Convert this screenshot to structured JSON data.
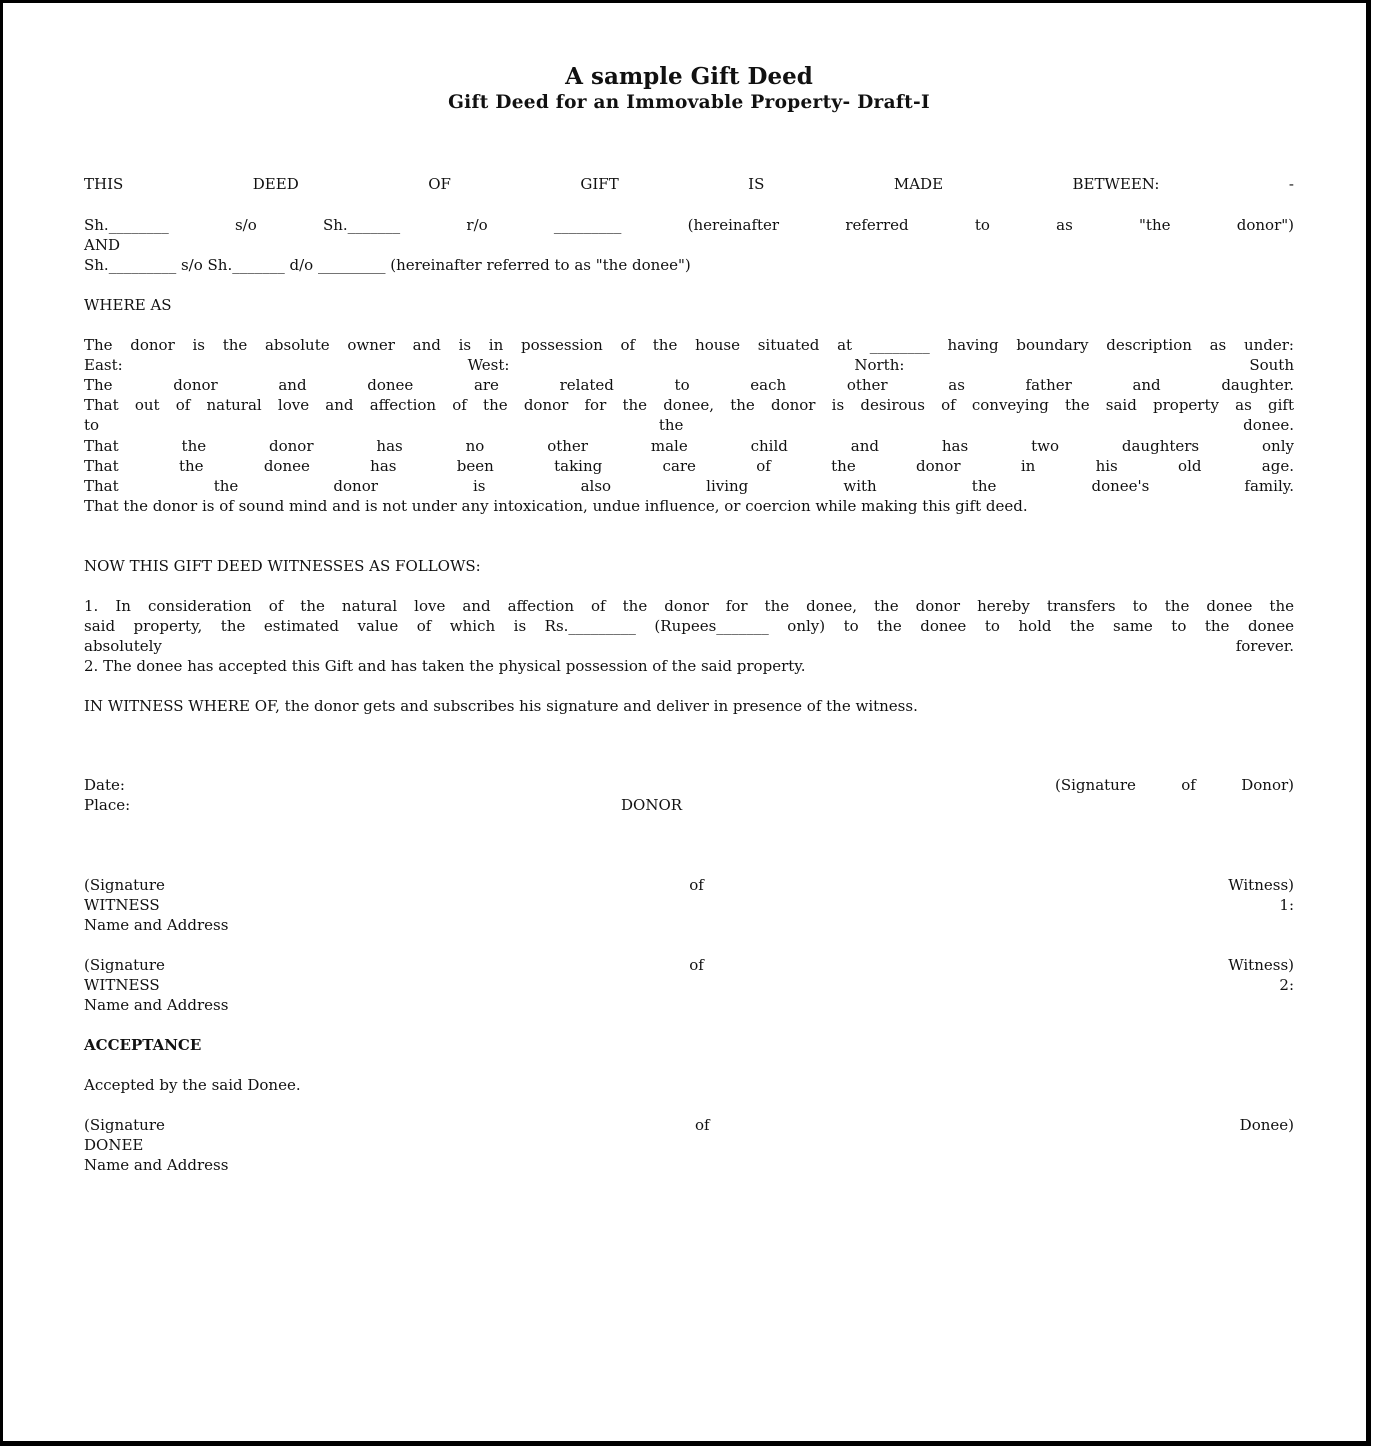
{
  "title": "A sample Gift Deed",
  "subtitle": "Gift Deed for an Immovable Property- Draft-I",
  "lines": [
    "THIS DEED OF GIFT IS MADE BETWEEN: -",
    "Sh.________ s/o Sh._______ r/o _________ (hereinafter referred to as \"the donor\")",
    "AND",
    "Sh._________ s/o Sh._______ d/o _________ (hereinafter referred to as \"the donee\")",
    "WHERE AS",
    "The donor is the absolute owner and is in possession of the house situated at ________ having boundary description as under:",
    "East: West: North: South",
    "The donor and donee are related to each other as father and daughter.",
    "That out of natural love and affection of the donor for the donee, the donor is desirous of conveying the said property as gift",
    "to the donee.",
    "That the donor has no other male child and has two daughters only",
    "That the donee has been taking care of the donor in his old age.",
    "That the donor is also living with the donee's family.",
    "That the donor is of sound mind and is not under any intoxication, undue influence, or coercion while making this gift deed.",
    "NOW THIS GIFT DEED WITNESSES AS FOLLOWS:",
    "1. In consideration of the natural love and affection of the donor for the donee, the donor hereby transfers to the donee the",
    "said property, the estimated value of which is Rs._________ (Rupees_______ only) to the donee to hold the same to the donee",
    "absolutely forever.",
    "2. The donee has accepted this Gift and has taken the physical possession of the said property.",
    "IN WITNESS WHERE OF, the donor gets and subscribes his signature and deliver in presence of the witness."
  ],
  "signature": {
    "date_label": "Date:",
    "donor_signature": "(Signature of Donor)",
    "place_label": "Place:",
    "donor_label": "DONOR",
    "witness1_signature": "(Signature of Witness)",
    "witness1_label": "WITNESS 1:",
    "witness1_name": "Name and Address",
    "witness2_signature": "(Signature of Witness)",
    "witness2_label": "WITNESS 2:",
    "witness2_name": "Name and Address",
    "acceptance_heading": "ACCEPTANCE",
    "acceptance_text": "Accepted by the said Donee.",
    "donee_signature": "(Signature of Donee)",
    "donee_label": "DONEE",
    "donee_name": "Name and Address"
  }
}
